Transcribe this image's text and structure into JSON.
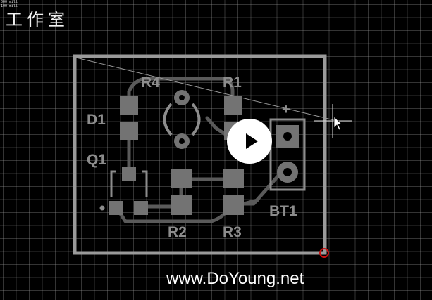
{
  "readout": {
    "line1": "000 mill",
    "line2": "100 mill"
  },
  "title": "工作室",
  "watermark": "www.DoYoung.net",
  "pcb": {
    "labels": {
      "r4": "R4",
      "r1": "R1",
      "d1": "D1",
      "q1": "Q1",
      "r2": "R2",
      "r3": "R3",
      "bt1": "BT1"
    },
    "colors": {
      "outline": "#9a9a9a",
      "pad": "#737373",
      "trace": "#5a5a5a",
      "silkscreen": "#8c8c8c",
      "origin_marker": "#cc1111",
      "grid": "#8a8a8a"
    }
  },
  "player": {
    "play_icon": "play-icon"
  },
  "cursor": {
    "icon": "crosshair-cursor-icon"
  }
}
